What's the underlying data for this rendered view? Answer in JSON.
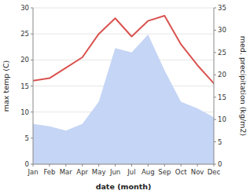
{
  "chart_data": {
    "type": "line",
    "xlabel": "date (month)",
    "ylabel": "max temp (C)",
    "y2label": "med. precipitation (kg/m2)",
    "categories": [
      "Jan",
      "Feb",
      "Mar",
      "Apr",
      "May",
      "Jun",
      "Jul",
      "Aug",
      "Sep",
      "Oct",
      "Nov",
      "Dec"
    ],
    "series": [
      {
        "type": "line",
        "color": "#d9534f",
        "values": [
          16.0,
          16.5,
          18.5,
          20.5,
          25.0,
          28.0,
          24.5,
          27.5,
          28.5,
          23.0,
          19.0,
          15.5
        ]
      },
      {
        "type": "area",
        "color": "#c5d5f5",
        "axis": "y2",
        "values": [
          9.0,
          8.5,
          7.5,
          9.0,
          14.0,
          26.0,
          25.0,
          29.0,
          21.0,
          14.0,
          12.5,
          10.5
        ]
      }
    ],
    "ylim": [
      0,
      30
    ],
    "yticks": [
      0,
      5,
      10,
      15,
      20,
      25,
      30
    ],
    "y2lim": [
      0,
      35
    ],
    "y2ticks": [
      0,
      5,
      10,
      15,
      20,
      25,
      30,
      35
    ],
    "grid": true
  }
}
